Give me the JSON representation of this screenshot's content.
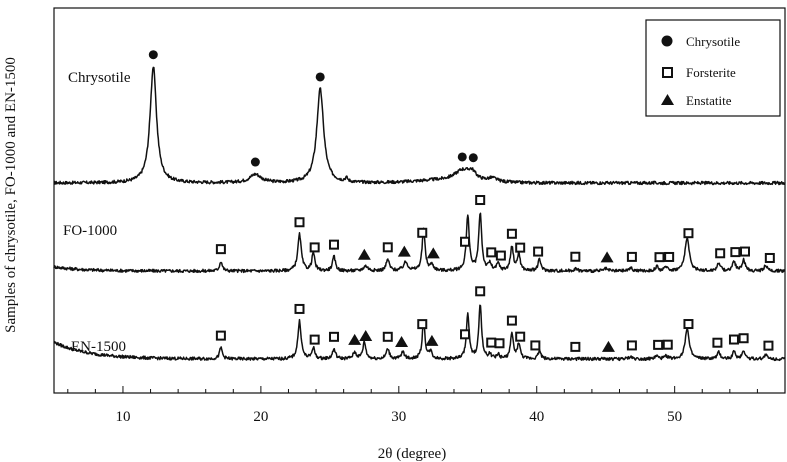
{
  "chart_data": {
    "type": "line",
    "xlabel": "2θ (degree)",
    "ylabel": "Samples of chrysotile, FO-1000 and EN-1500",
    "xlim": [
      5,
      58
    ],
    "xticks": [
      10,
      20,
      30,
      40,
      50
    ],
    "legend": {
      "placement": "top-right",
      "entries": [
        {
          "marker": "circle",
          "label": "Chrysotile"
        },
        {
          "marker": "square",
          "label": "Forsterite"
        },
        {
          "marker": "triangle",
          "label": "Enstatite"
        }
      ]
    },
    "series": [
      {
        "name": "Chrysotile",
        "baseline": 1.0,
        "peaks": [
          {
            "x": 12.2,
            "h": 8.3,
            "w": 0.28
          },
          {
            "x": 19.6,
            "h": 0.6,
            "w": 0.5
          },
          {
            "x": 24.3,
            "h": 6.7,
            "w": 0.3
          },
          {
            "x": 26.2,
            "h": 0.25,
            "w": 0.12
          },
          {
            "x": 34.6,
            "h": 0.7,
            "w": 0.65
          },
          {
            "x": 35.3,
            "h": 0.55,
            "w": 0.35
          },
          {
            "x": 36.8,
            "h": 0.25,
            "w": 0.4
          }
        ],
        "markers": [
          {
            "x": 12.2,
            "symbol": "circle"
          },
          {
            "x": 19.6,
            "symbol": "circle"
          },
          {
            "x": 24.3,
            "symbol": "circle"
          },
          {
            "x": 34.6,
            "symbol": "circle"
          },
          {
            "x": 35.4,
            "symbol": "circle"
          }
        ]
      },
      {
        "name": "FO-1000",
        "baseline": 0.0,
        "peaks": [
          {
            "x": 17.1,
            "h": 0.7,
            "w": 0.12
          },
          {
            "x": 22.8,
            "h": 2.6,
            "w": 0.15
          },
          {
            "x": 23.8,
            "h": 1.3,
            "w": 0.12
          },
          {
            "x": 25.3,
            "h": 1.0,
            "w": 0.13
          },
          {
            "x": 27.6,
            "h": 0.35,
            "w": 0.2
          },
          {
            "x": 29.2,
            "h": 0.8,
            "w": 0.14
          },
          {
            "x": 30.5,
            "h": 0.6,
            "w": 0.2
          },
          {
            "x": 31.8,
            "h": 2.9,
            "w": 0.13
          },
          {
            "x": 32.4,
            "h": 0.4,
            "w": 0.15
          },
          {
            "x": 35.0,
            "h": 3.9,
            "w": 0.13
          },
          {
            "x": 35.9,
            "h": 4.1,
            "w": 0.13
          },
          {
            "x": 36.6,
            "h": 0.5,
            "w": 0.12
          },
          {
            "x": 37.2,
            "h": 0.5,
            "w": 0.12
          },
          {
            "x": 38.2,
            "h": 1.7,
            "w": 0.13
          },
          {
            "x": 38.7,
            "h": 1.2,
            "w": 0.12
          },
          {
            "x": 40.2,
            "h": 0.8,
            "w": 0.13
          },
          {
            "x": 42.8,
            "h": 0.15,
            "w": 0.15
          },
          {
            "x": 45.0,
            "h": 0.15,
            "w": 0.15
          },
          {
            "x": 46.8,
            "h": 0.2,
            "w": 0.15
          },
          {
            "x": 48.7,
            "h": 0.3,
            "w": 0.13
          },
          {
            "x": 49.4,
            "h": 0.3,
            "w": 0.13
          },
          {
            "x": 50.9,
            "h": 2.4,
            "w": 0.18
          },
          {
            "x": 53.2,
            "h": 0.6,
            "w": 0.13
          },
          {
            "x": 54.3,
            "h": 0.7,
            "w": 0.13
          },
          {
            "x": 55.0,
            "h": 0.8,
            "w": 0.13
          },
          {
            "x": 56.6,
            "h": 0.4,
            "w": 0.13
          }
        ],
        "markers": [
          {
            "x": 17.1,
            "symbol": "square"
          },
          {
            "x": 22.8,
            "symbol": "square"
          },
          {
            "x": 23.9,
            "symbol": "square"
          },
          {
            "x": 25.3,
            "symbol": "square"
          },
          {
            "x": 27.5,
            "symbol": "triangle"
          },
          {
            "x": 29.2,
            "symbol": "square"
          },
          {
            "x": 30.4,
            "symbol": "triangle"
          },
          {
            "x": 31.7,
            "symbol": "square"
          },
          {
            "x": 32.5,
            "symbol": "triangle"
          },
          {
            "x": 34.8,
            "symbol": "square"
          },
          {
            "x": 35.9,
            "symbol": "square"
          },
          {
            "x": 36.7,
            "symbol": "square"
          },
          {
            "x": 37.4,
            "symbol": "square"
          },
          {
            "x": 38.2,
            "symbol": "square"
          },
          {
            "x": 38.8,
            "symbol": "square"
          },
          {
            "x": 40.1,
            "symbol": "square"
          },
          {
            "x": 42.8,
            "symbol": "square"
          },
          {
            "x": 45.1,
            "symbol": "triangle"
          },
          {
            "x": 46.9,
            "symbol": "square"
          },
          {
            "x": 48.9,
            "symbol": "square"
          },
          {
            "x": 49.6,
            "symbol": "square"
          },
          {
            "x": 51.0,
            "symbol": "square"
          },
          {
            "x": 53.3,
            "symbol": "square"
          },
          {
            "x": 54.4,
            "symbol": "square"
          },
          {
            "x": 55.1,
            "symbol": "square"
          },
          {
            "x": 56.9,
            "symbol": "square"
          }
        ]
      },
      {
        "name": "EN-1500",
        "baseline": -1.0,
        "peaks": [
          {
            "x": 17.1,
            "h": 0.8,
            "w": 0.12
          },
          {
            "x": 22.8,
            "h": 2.7,
            "w": 0.14
          },
          {
            "x": 23.8,
            "h": 0.8,
            "w": 0.12
          },
          {
            "x": 25.3,
            "h": 0.7,
            "w": 0.13
          },
          {
            "x": 26.8,
            "h": 0.45,
            "w": 0.15
          },
          {
            "x": 27.5,
            "h": 1.2,
            "w": 0.13
          },
          {
            "x": 29.2,
            "h": 0.7,
            "w": 0.14
          },
          {
            "x": 30.3,
            "h": 0.5,
            "w": 0.13
          },
          {
            "x": 31.8,
            "h": 2.7,
            "w": 0.12
          },
          {
            "x": 32.3,
            "h": 0.5,
            "w": 0.13
          },
          {
            "x": 35.0,
            "h": 3.2,
            "w": 0.12
          },
          {
            "x": 35.9,
            "h": 3.9,
            "w": 0.12
          },
          {
            "x": 36.6,
            "h": 0.3,
            "w": 0.12
          },
          {
            "x": 37.2,
            "h": 0.3,
            "w": 0.12
          },
          {
            "x": 38.2,
            "h": 1.8,
            "w": 0.12
          },
          {
            "x": 38.7,
            "h": 1.1,
            "w": 0.12
          },
          {
            "x": 40.2,
            "h": 0.6,
            "w": 0.12
          },
          {
            "x": 46.8,
            "h": 0.15,
            "w": 0.15
          },
          {
            "x": 48.7,
            "h": 0.2,
            "w": 0.13
          },
          {
            "x": 49.4,
            "h": 0.2,
            "w": 0.13
          },
          {
            "x": 50.9,
            "h": 2.2,
            "w": 0.17
          },
          {
            "x": 53.2,
            "h": 0.45,
            "w": 0.13
          },
          {
            "x": 54.3,
            "h": 0.5,
            "w": 0.13
          },
          {
            "x": 55.0,
            "h": 0.6,
            "w": 0.13
          },
          {
            "x": 56.6,
            "h": 0.3,
            "w": 0.13
          }
        ],
        "markers": [
          {
            "x": 17.1,
            "symbol": "square"
          },
          {
            "x": 22.8,
            "symbol": "square"
          },
          {
            "x": 23.9,
            "symbol": "square"
          },
          {
            "x": 25.3,
            "symbol": "square"
          },
          {
            "x": 26.8,
            "symbol": "triangle"
          },
          {
            "x": 27.6,
            "symbol": "triangle"
          },
          {
            "x": 29.2,
            "symbol": "square"
          },
          {
            "x": 30.2,
            "symbol": "triangle"
          },
          {
            "x": 31.7,
            "symbol": "square"
          },
          {
            "x": 32.4,
            "symbol": "triangle"
          },
          {
            "x": 34.8,
            "symbol": "square"
          },
          {
            "x": 35.9,
            "symbol": "square"
          },
          {
            "x": 36.7,
            "symbol": "square"
          },
          {
            "x": 37.3,
            "symbol": "square"
          },
          {
            "x": 38.2,
            "symbol": "square"
          },
          {
            "x": 38.8,
            "symbol": "square"
          },
          {
            "x": 39.9,
            "symbol": "square"
          },
          {
            "x": 42.8,
            "symbol": "square"
          },
          {
            "x": 45.2,
            "symbol": "triangle"
          },
          {
            "x": 46.9,
            "symbol": "square"
          },
          {
            "x": 48.8,
            "symbol": "square"
          },
          {
            "x": 49.5,
            "symbol": "square"
          },
          {
            "x": 51.0,
            "symbol": "square"
          },
          {
            "x": 53.1,
            "symbol": "square"
          },
          {
            "x": 54.3,
            "symbol": "square"
          },
          {
            "x": 55.0,
            "symbol": "square"
          },
          {
            "x": 56.8,
            "symbol": "square"
          }
        ]
      }
    ]
  }
}
